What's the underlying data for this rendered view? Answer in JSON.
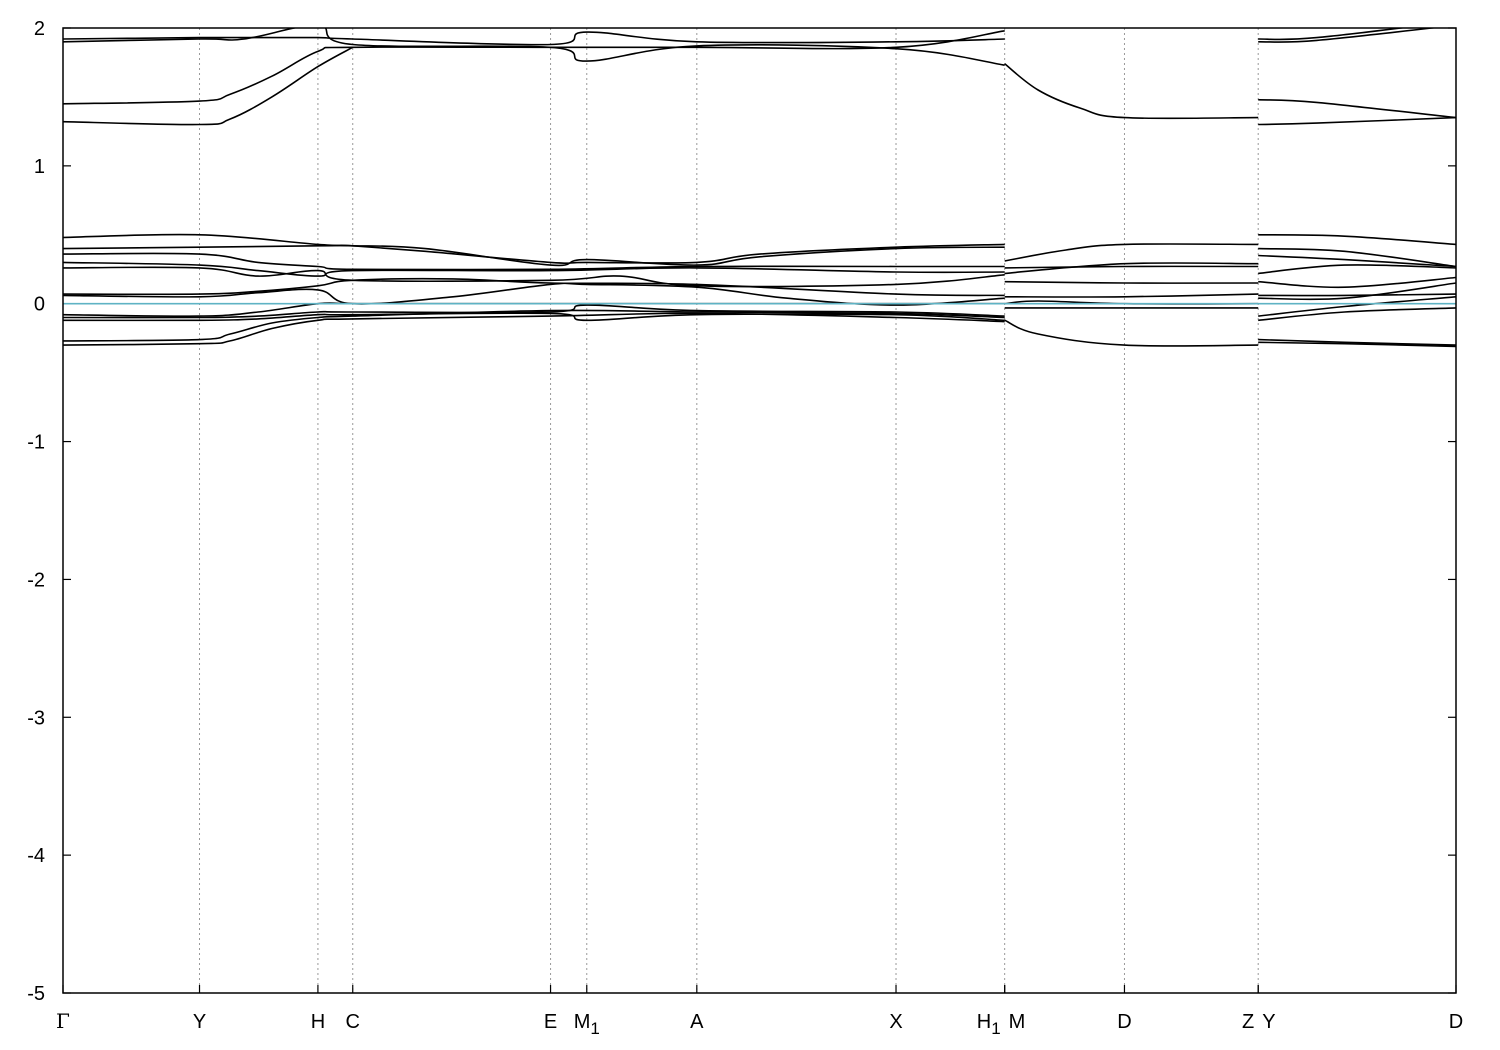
{
  "chart_data": {
    "type": "line",
    "title": "",
    "xlabel": "",
    "ylabel": "",
    "ylim": [
      -5,
      2
    ],
    "xlim": [
      0,
      10
    ],
    "grid": "vertical dotted lines at high-symmetry points",
    "y_ticks": [
      {
        "value": -5,
        "label": "-5"
      },
      {
        "value": -4,
        "label": "-4"
      },
      {
        "value": -3,
        "label": "-3"
      },
      {
        "value": -2,
        "label": "-2"
      },
      {
        "value": -1,
        "label": "-1"
      },
      {
        "value": 0,
        "label": "0"
      },
      {
        "value": 1,
        "label": "1"
      },
      {
        "value": 2,
        "label": "2"
      }
    ],
    "k_points": [
      {
        "x": 0.0,
        "label": "Γ",
        "sub": ""
      },
      {
        "x": 0.98,
        "label": "Y",
        "sub": ""
      },
      {
        "x": 1.83,
        "label": "H",
        "sub": ""
      },
      {
        "x": 2.08,
        "label": "C",
        "sub": ""
      },
      {
        "x": 3.5,
        "label": "E",
        "sub": ""
      },
      {
        "x": 3.76,
        "label": "M",
        "sub": "1"
      },
      {
        "x": 4.55,
        "label": "A",
        "sub": ""
      },
      {
        "x": 5.98,
        "label": "X",
        "sub": ""
      },
      {
        "x": 6.76,
        "label": "H",
        "sub": "1"
      },
      {
        "x": 6.76,
        "label": "M",
        "sub": ""
      },
      {
        "x": 7.62,
        "label": "D",
        "sub": ""
      },
      {
        "x": 8.58,
        "label": "Z",
        "sub": ""
      },
      {
        "x": 8.58,
        "label": "Y",
        "sub": ""
      },
      {
        "x": 10.0,
        "label": "D",
        "sub": ""
      }
    ],
    "fermi_level": 0.0,
    "fermi_color": "#5fb3c4",
    "band_color": "#000000",
    "series": [
      {
        "segments": [
          {
            "x": [
              0,
              0.98,
              1.3,
              1.83,
              2.08,
              3.5,
              3.76,
              4.55,
              5.98,
              6.76
            ],
            "y": [
              1.92,
              1.93,
              1.93,
              1.93,
              1.92,
              1.88,
              1.97,
              1.9,
              1.9,
              1.92
            ]
          },
          {
            "x": [
              8.58,
              9.0,
              10.0
            ],
            "y": [
              1.92,
              1.93,
              2.05
            ]
          }
        ]
      },
      {
        "segments": [
          {
            "x": [
              0,
              0.98,
              1.3,
              1.83,
              2.08,
              3.5,
              3.76,
              4.55,
              5.98,
              6.76
            ],
            "y": [
              1.9,
              1.92,
              1.92,
              2.02,
              1.88,
              1.86,
              1.76,
              1.87,
              1.85,
              1.73
            ]
          },
          {
            "x": [
              8.58,
              9.0,
              10.0
            ],
            "y": [
              1.9,
              1.91,
              2.02
            ]
          }
        ]
      },
      {
        "segments": [
          {
            "x": [
              0,
              0.98,
              1.2,
              1.5,
              1.83,
              2.08,
              3.5,
              4.55,
              5.98,
              6.76
            ],
            "y": [
              1.45,
              1.47,
              1.52,
              1.65,
              1.83,
              1.86,
              1.86,
              1.86,
              1.86,
              1.98
            ]
          }
        ]
      },
      {
        "segments": [
          {
            "x": [
              0,
              0.98,
              1.2,
              1.5,
              1.83,
              2.08
            ],
            "y": [
              1.32,
              1.3,
              1.34,
              1.5,
              1.72,
              1.86
            ]
          },
          {
            "x": [
              6.76,
              7.0,
              7.3,
              7.62,
              8.58
            ],
            "y": [
              1.74,
              1.55,
              1.42,
              1.35,
              1.35
            ]
          },
          {
            "x": [
              8.58,
              9.0,
              10.0
            ],
            "y": [
              1.48,
              1.46,
              1.35
            ]
          },
          {
            "x": [
              8.58,
              9.0,
              10.0
            ],
            "y": [
              1.3,
              1.31,
              1.35
            ]
          }
        ]
      },
      {
        "segments": [
          {
            "x": [
              0,
              0.98,
              1.83,
              2.08,
              2.6,
              3.5,
              3.76,
              4.55,
              5.0,
              5.98,
              6.76
            ],
            "y": [
              0.48,
              0.5,
              0.43,
              0.42,
              0.38,
              0.3,
              0.3,
              0.3,
              0.36,
              0.41,
              0.43
            ]
          },
          {
            "x": [
              6.76,
              7.2,
              7.62,
              8.58
            ],
            "y": [
              0.31,
              0.39,
              0.43,
              0.43
            ]
          },
          {
            "x": [
              8.58,
              9.2,
              10.0
            ],
            "y": [
              0.5,
              0.49,
              0.43
            ]
          }
        ]
      },
      {
        "segments": [
          {
            "x": [
              0,
              0.98,
              1.83,
              2.08,
              2.6,
              3.5,
              3.76,
              4.55,
              5.0,
              5.98,
              6.76
            ],
            "y": [
              0.4,
              0.41,
              0.42,
              0.42,
              0.4,
              0.28,
              0.32,
              0.28,
              0.34,
              0.4,
              0.41
            ]
          },
          {
            "x": [
              8.58,
              9.2,
              10.0
            ],
            "y": [
              0.4,
              0.38,
              0.27
            ]
          }
        ]
      },
      {
        "segments": [
          {
            "x": [
              0,
              0.98,
              1.4,
              1.83,
              2.08,
              3.5,
              4.55,
              5.98,
              6.76
            ],
            "y": [
              0.36,
              0.36,
              0.3,
              0.27,
              0.25,
              0.25,
              0.27,
              0.27,
              0.27
            ]
          },
          {
            "x": [
              6.76,
              7.62,
              8.58
            ],
            "y": [
              0.26,
              0.27,
              0.27
            ]
          },
          {
            "x": [
              8.58,
              9.2,
              10.0
            ],
            "y": [
              0.35,
              0.32,
              0.27
            ]
          }
        ]
      },
      {
        "segments": [
          {
            "x": [
              0,
              0.98,
              1.4,
              1.83,
              2.08,
              3.5,
              4.55,
              5.98,
              6.76
            ],
            "y": [
              0.3,
              0.28,
              0.24,
              0.2,
              0.24,
              0.24,
              0.26,
              0.23,
              0.23
            ]
          },
          {
            "x": [
              6.76,
              7.62,
              8.58
            ],
            "y": [
              0.22,
              0.29,
              0.29
            ]
          },
          {
            "x": [
              8.58,
              9.2,
              10.0
            ],
            "y": [
              0.22,
              0.28,
              0.26
            ]
          }
        ]
      },
      {
        "segments": [
          {
            "x": [
              0,
              0.98,
              1.4,
              1.83,
              2.08,
              3.5,
              4.0,
              4.55,
              5.98,
              6.76
            ],
            "y": [
              0.26,
              0.26,
              0.2,
              0.24,
              0.17,
              0.17,
              0.2,
              0.13,
              0.14,
              0.21
            ]
          },
          {
            "x": [
              6.76,
              7.62,
              8.58
            ],
            "y": [
              0.16,
              0.15,
              0.15
            ]
          },
          {
            "x": [
              8.58,
              9.2,
              10.0
            ],
            "y": [
              0.16,
              0.12,
              0.19
            ]
          }
        ]
      },
      {
        "segments": [
          {
            "x": [
              0,
              0.98,
              1.4,
              1.83,
              2.08,
              2.8,
              3.5,
              4.55,
              5.98,
              6.76
            ],
            "y": [
              0.07,
              0.07,
              0.09,
              0.13,
              0.17,
              0.18,
              0.15,
              0.14,
              0.07,
              0.06
            ]
          },
          {
            "x": [
              6.76,
              7.62,
              8.58
            ],
            "y": [
              0.05,
              0.05,
              0.07
            ]
          },
          {
            "x": [
              8.58,
              9.2,
              10.0
            ],
            "y": [
              0.06,
              0.06,
              0.07
            ]
          }
        ]
      },
      {
        "segments": [
          {
            "x": [
              0,
              0.98,
              1.4,
              1.83,
              2.08,
              2.8,
              3.5,
              3.76,
              4.55,
              5.2,
              5.98,
              6.76
            ],
            "y": [
              0.06,
              0.05,
              0.08,
              0.1,
              0.0,
              0.05,
              0.14,
              0.14,
              0.12,
              0.04,
              -0.01,
              0.04
            ]
          },
          {
            "x": [
              6.76,
              7.0,
              7.62,
              8.58
            ],
            "y": [
              0.0,
              0.02,
              0.0,
              0.0
            ]
          },
          {
            "x": [
              8.58,
              9.2,
              10.0
            ],
            "y": [
              0.04,
              0.04,
              0.15
            ]
          }
        ]
      },
      {
        "segments": [
          {
            "x": [
              0,
              0.98,
              1.4,
              1.83,
              2.08,
              2.8,
              3.5,
              3.76,
              4.55,
              5.98,
              6.76
            ],
            "y": [
              -0.08,
              -0.09,
              -0.06,
              0.0,
              0.0,
              0.0,
              0.0,
              0.0,
              0.0,
              0.0,
              0.0
            ]
          },
          {
            "x": [
              8.58,
              9.2,
              10.0
            ],
            "y": [
              -0.09,
              -0.02,
              0.05
            ]
          }
        ]
      },
      {
        "segments": [
          {
            "x": [
              0,
              0.98,
              1.4,
              1.83,
              2.08,
              3.5,
              3.76,
              4.55,
              5.98,
              6.76
            ],
            "y": [
              -0.1,
              -0.1,
              -0.09,
              -0.06,
              -0.06,
              -0.06,
              -0.01,
              -0.05,
              -0.06,
              -0.09
            ]
          },
          {
            "x": [
              6.76,
              7.62,
              8.58
            ],
            "y": [
              -0.03,
              -0.03,
              -0.03
            ]
          },
          {
            "x": [
              8.58,
              9.2,
              10.0
            ],
            "y": [
              -0.12,
              -0.06,
              -0.03
            ]
          }
        ]
      },
      {
        "segments": [
          {
            "x": [
              0,
              0.98,
              1.4,
              1.83,
              2.08,
              3.5,
              3.76,
              4.55,
              5.98,
              6.76
            ],
            "y": [
              -0.12,
              -0.12,
              -0.11,
              -0.08,
              -0.08,
              -0.07,
              -0.12,
              -0.08,
              -0.08,
              -0.12
            ]
          },
          {
            "x": [
              6.76,
              7.0,
              7.62,
              8.58
            ],
            "y": [
              -0.12,
              -0.22,
              -0.3,
              -0.3
            ]
          }
        ]
      },
      {
        "segments": [
          {
            "x": [
              0,
              0.98,
              1.2,
              1.5,
              1.83,
              2.08,
              3.5,
              4.55,
              5.98,
              6.76
            ],
            "y": [
              -0.27,
              -0.26,
              -0.22,
              -0.14,
              -0.1,
              -0.09,
              -0.05,
              -0.06,
              -0.07,
              -0.1
            ]
          },
          {
            "x": [
              8.58,
              9.2,
              10.0
            ],
            "y": [
              -0.26,
              -0.28,
              -0.3
            ]
          }
        ]
      },
      {
        "segments": [
          {
            "x": [
              0,
              0.98,
              1.2,
              1.5,
              1.83,
              2.08,
              3.5,
              4.55,
              5.98,
              6.76
            ],
            "y": [
              -0.3,
              -0.29,
              -0.27,
              -0.18,
              -0.12,
              -0.11,
              -0.09,
              -0.07,
              -0.1,
              -0.13
            ]
          },
          {
            "x": [
              8.58,
              9.2,
              10.0
            ],
            "y": [
              -0.28,
              -0.29,
              -0.31
            ]
          }
        ]
      }
    ]
  }
}
